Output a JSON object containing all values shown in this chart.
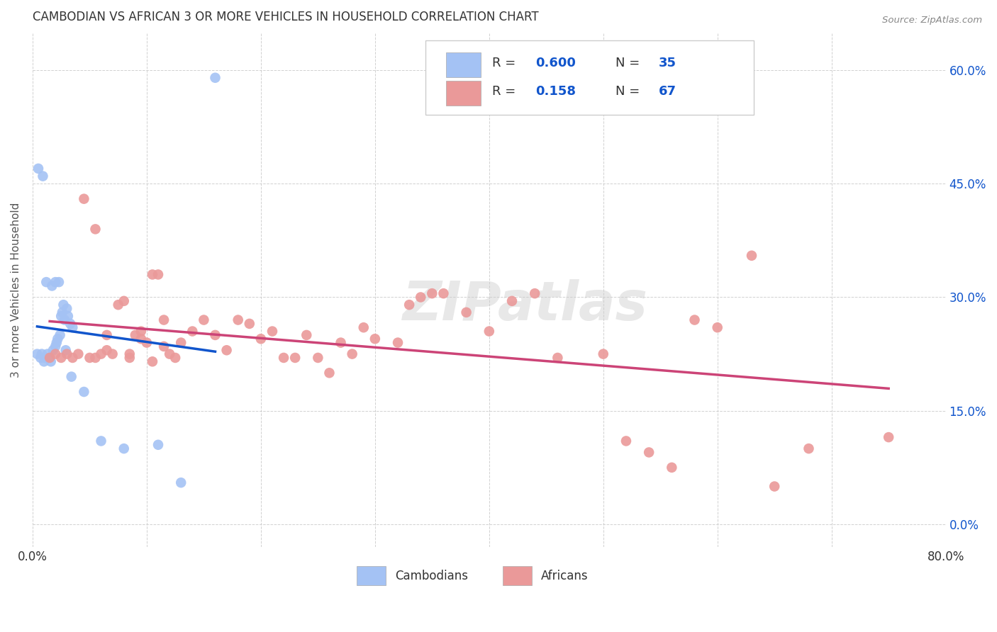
{
  "title": "CAMBODIAN VS AFRICAN 3 OR MORE VEHICLES IN HOUSEHOLD CORRELATION CHART",
  "source": "Source: ZipAtlas.com",
  "ylabel": "3 or more Vehicles in Household",
  "xlim": [
    0.0,
    80.0
  ],
  "ylim": [
    -3.0,
    65.0
  ],
  "cambodian_R": 0.6,
  "cambodian_N": 35,
  "african_R": 0.158,
  "african_N": 67,
  "cambodian_color": "#a4c2f4",
  "african_color": "#ea9999",
  "cambodian_line_color": "#1155cc",
  "african_line_color": "#cc4477",
  "background_color": "#ffffff",
  "grid_color": "#cccccc",
  "watermark": "ZIPatlas",
  "r_n_color": "#1155cc",
  "cam_x": [
    0.4,
    0.7,
    0.8,
    1.0,
    1.1,
    1.3,
    1.5,
    1.6,
    1.8,
    2.0,
    2.1,
    2.2,
    2.4,
    2.5,
    2.6,
    2.7,
    2.8,
    3.0,
    3.1,
    3.3,
    3.5,
    0.5,
    0.9,
    1.2,
    1.7,
    2.0,
    2.3,
    2.9,
    3.4,
    4.5,
    6.0,
    8.0,
    11.0,
    13.0,
    16.0
  ],
  "cam_y": [
    22.5,
    22.0,
    22.5,
    21.5,
    22.0,
    22.5,
    22.0,
    21.5,
    23.0,
    23.5,
    24.0,
    24.5,
    25.0,
    27.5,
    28.0,
    29.0,
    27.0,
    28.5,
    27.5,
    26.5,
    26.0,
    47.0,
    46.0,
    32.0,
    31.5,
    32.0,
    32.0,
    23.0,
    19.5,
    17.5,
    11.0,
    10.0,
    10.5,
    5.5,
    59.0
  ],
  "afr_x": [
    1.5,
    2.0,
    2.5,
    3.0,
    3.5,
    4.0,
    4.5,
    5.0,
    5.5,
    6.0,
    6.5,
    7.0,
    7.5,
    8.0,
    8.5,
    9.0,
    9.5,
    10.0,
    10.5,
    11.0,
    11.5,
    12.0,
    12.5,
    13.0,
    14.0,
    15.0,
    16.0,
    17.0,
    18.0,
    19.0,
    20.0,
    21.0,
    22.0,
    23.0,
    24.0,
    25.0,
    26.0,
    27.0,
    28.0,
    29.0,
    30.0,
    32.0,
    33.0,
    34.0,
    35.0,
    36.0,
    38.0,
    40.0,
    42.0,
    44.0,
    46.0,
    50.0,
    52.0,
    54.0,
    56.0,
    58.0,
    60.0,
    63.0,
    65.0,
    68.0,
    75.0,
    5.5,
    6.5,
    8.5,
    9.5,
    10.5,
    11.5
  ],
  "afr_y": [
    22.0,
    22.5,
    22.0,
    22.5,
    22.0,
    22.5,
    43.0,
    22.0,
    39.0,
    22.5,
    23.0,
    22.5,
    29.0,
    29.5,
    22.0,
    25.0,
    25.5,
    24.0,
    33.0,
    33.0,
    27.0,
    22.5,
    22.0,
    24.0,
    25.5,
    27.0,
    25.0,
    23.0,
    27.0,
    26.5,
    24.5,
    25.5,
    22.0,
    22.0,
    25.0,
    22.0,
    20.0,
    24.0,
    22.5,
    26.0,
    24.5,
    24.0,
    29.0,
    30.0,
    30.5,
    30.5,
    28.0,
    25.5,
    29.5,
    30.5,
    22.0,
    22.5,
    11.0,
    9.5,
    7.5,
    27.0,
    26.0,
    35.5,
    5.0,
    10.0,
    11.5,
    22.0,
    25.0,
    22.5,
    24.5,
    21.5,
    23.5
  ]
}
